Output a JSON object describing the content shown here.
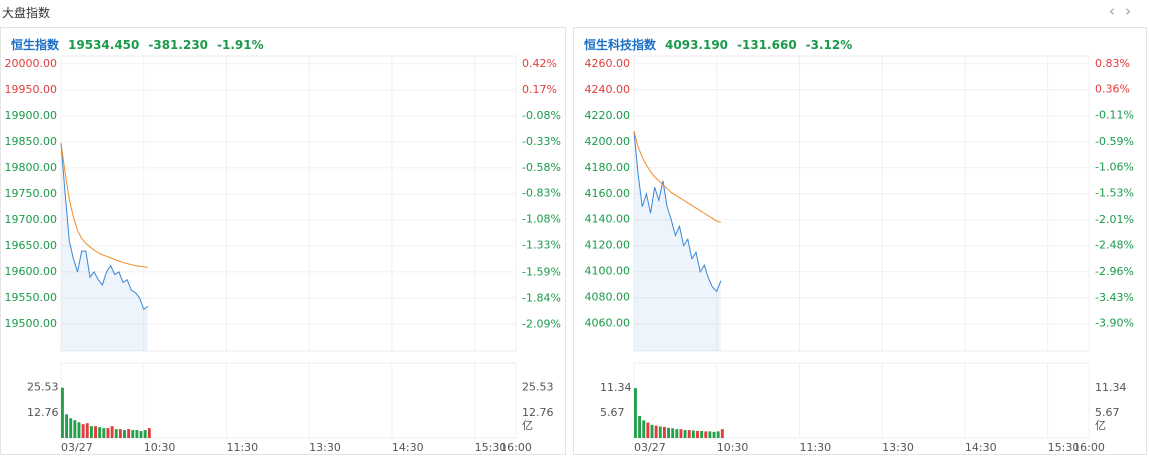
{
  "header": {
    "title": "大盘指数"
  },
  "chart_data": [
    {
      "type": "line",
      "title": "恒生指数",
      "price": "19534.450",
      "change": "-381.230",
      "change_pct": "-1.91%",
      "xlim": [
        0,
        330
      ],
      "xticks": [
        {
          "value": 0,
          "label": "03/27"
        },
        {
          "value": 60,
          "label": "10:30"
        },
        {
          "value": 120,
          "label": "11:30"
        },
        {
          "value": 180,
          "label": "13:30"
        },
        {
          "value": 240,
          "label": "14:30"
        },
        {
          "value": 300,
          "label": "15:30"
        },
        {
          "value": 330,
          "label": "16:00"
        }
      ],
      "ylim": [
        19448,
        20015
      ],
      "yticks": [
        {
          "value": 20000,
          "label": "20000.00"
        },
        {
          "value": 19950,
          "label": "19950.00"
        },
        {
          "value": 19900,
          "label": "19900.00"
        },
        {
          "value": 19850,
          "label": "19850.00"
        },
        {
          "value": 19800,
          "label": "19800.00"
        },
        {
          "value": 19750,
          "label": "19750.00"
        },
        {
          "value": 19700,
          "label": "19700.00"
        },
        {
          "value": 19650,
          "label": "19650.00"
        },
        {
          "value": 19600,
          "label": "19600.00"
        },
        {
          "value": 19550,
          "label": "19550.00"
        },
        {
          "value": 19500,
          "label": "19500.00"
        }
      ],
      "y2lim": [
        -2.348,
        0.499
      ],
      "y2ticks": [
        {
          "value": 0.42,
          "label": "0.42%"
        },
        {
          "value": 0.17,
          "label": "0.17%"
        },
        {
          "value": -0.08,
          "label": "-0.08%"
        },
        {
          "value": -0.33,
          "label": "-0.33%"
        },
        {
          "value": -0.58,
          "label": "-0.58%"
        },
        {
          "value": -0.83,
          "label": "-0.83%"
        },
        {
          "value": -1.08,
          "label": "-1.08%"
        },
        {
          "value": -1.33,
          "label": "-1.33%"
        },
        {
          "value": -1.59,
          "label": "-1.59%"
        },
        {
          "value": -1.84,
          "label": "-1.84%"
        },
        {
          "value": -2.09,
          "label": "-2.09%"
        }
      ],
      "x": [
        0,
        3,
        6,
        9,
        12,
        15,
        18,
        21,
        24,
        27,
        30,
        33,
        36,
        39,
        42,
        45,
        48,
        51,
        54,
        57,
        60,
        63
      ],
      "series": [
        {
          "color": "#3a86d8",
          "values": [
            19848,
            19750,
            19660,
            19625,
            19600,
            19640,
            19640,
            19590,
            19600,
            19585,
            19575,
            19600,
            19612,
            19595,
            19600,
            19580,
            19585,
            19565,
            19560,
            19550,
            19528,
            19534
          ]
        },
        {
          "color": "#f08c2a",
          "values": [
            19848,
            19790,
            19740,
            19705,
            19680,
            19664,
            19655,
            19648,
            19642,
            19637,
            19633,
            19630,
            19627,
            19624,
            19621,
            19618,
            19616,
            19614,
            19612,
            19611,
            19610,
            19609
          ]
        }
      ],
      "volume": {
        "type": "bar",
        "unit": "亿",
        "ylim": [
          0,
          38
        ],
        "yticks": [
          25.53,
          12.76
        ],
        "up_color": "#e23b3b",
        "down_color": "#22a04b",
        "values": [
          25.5,
          12,
          10,
          9,
          8,
          7,
          7.5,
          6,
          6,
          5.5,
          5,
          5,
          6,
          4.5,
          4.5,
          4,
          4.5,
          4,
          4,
          3.5,
          4,
          5
        ]
      }
    },
    {
      "type": "line",
      "title": "恒生科技指数",
      "price": "4093.190",
      "change": "-131.660",
      "change_pct": "-3.12%",
      "xlim": [
        0,
        330
      ],
      "xticks": [
        {
          "value": 0,
          "label": "03/27"
        },
        {
          "value": 60,
          "label": "10:30"
        },
        {
          "value": 120,
          "label": "11:30"
        },
        {
          "value": 180,
          "label": "13:30"
        },
        {
          "value": 240,
          "label": "14:30"
        },
        {
          "value": 300,
          "label": "15:30"
        },
        {
          "value": 330,
          "label": "16:00"
        }
      ],
      "ylim": [
        4039,
        4266
      ],
      "yticks": [
        {
          "value": 4260,
          "label": "4260.00"
        },
        {
          "value": 4240,
          "label": "4240.00"
        },
        {
          "value": 4220,
          "label": "4220.00"
        },
        {
          "value": 4200,
          "label": "4200.00"
        },
        {
          "value": 4180,
          "label": "4180.00"
        },
        {
          "value": 4160,
          "label": "4160.00"
        },
        {
          "value": 4140,
          "label": "4140.00"
        },
        {
          "value": 4120,
          "label": "4120.00"
        },
        {
          "value": 4100,
          "label": "4100.00"
        },
        {
          "value": 4080,
          "label": "4080.00"
        },
        {
          "value": 4060,
          "label": "4060.00"
        }
      ],
      "y2lim": [
        -4.399,
        0.974
      ],
      "y2ticks": [
        {
          "value": 0.83,
          "label": "0.83%"
        },
        {
          "value": 0.36,
          "label": "0.36%"
        },
        {
          "value": -0.11,
          "label": "-0.11%"
        },
        {
          "value": -0.59,
          "label": "-0.59%"
        },
        {
          "value": -1.06,
          "label": "-1.06%"
        },
        {
          "value": -1.53,
          "label": "-1.53%"
        },
        {
          "value": -2.01,
          "label": "-2.01%"
        },
        {
          "value": -2.48,
          "label": "-2.48%"
        },
        {
          "value": -2.96,
          "label": "-2.96%"
        },
        {
          "value": -3.43,
          "label": "-3.43%"
        },
        {
          "value": -3.9,
          "label": "-3.90%"
        }
      ],
      "x": [
        0,
        3,
        6,
        9,
        12,
        15,
        18,
        21,
        24,
        27,
        30,
        33,
        36,
        39,
        42,
        45,
        48,
        51,
        54,
        57,
        60,
        63
      ],
      "series": [
        {
          "color": "#3a86d8",
          "values": [
            4208,
            4175,
            4150,
            4160,
            4145,
            4165,
            4155,
            4170,
            4150,
            4140,
            4128,
            4135,
            4120,
            4125,
            4110,
            4115,
            4100,
            4105,
            4095,
            4088,
            4085,
            4093
          ]
        },
        {
          "color": "#f08c2a",
          "values": [
            4208,
            4196,
            4188,
            4182,
            4177,
            4173,
            4170,
            4167,
            4164,
            4161,
            4159,
            4157,
            4155,
            4153,
            4151,
            4149,
            4147,
            4145,
            4143,
            4141,
            4139,
            4138
          ]
        }
      ],
      "volume": {
        "type": "bar",
        "unit": "亿",
        "ylim": [
          0,
          17
        ],
        "yticks": [
          11.34,
          5.67
        ],
        "up_color": "#e23b3b",
        "down_color": "#22a04b",
        "values": [
          11.3,
          5,
          4,
          3.5,
          3,
          2.8,
          2.6,
          2.5,
          2.3,
          2.2,
          2,
          2,
          1.8,
          1.8,
          1.7,
          1.6,
          1.6,
          1.5,
          1.5,
          1.4,
          1.5,
          2
        ]
      }
    }
  ]
}
